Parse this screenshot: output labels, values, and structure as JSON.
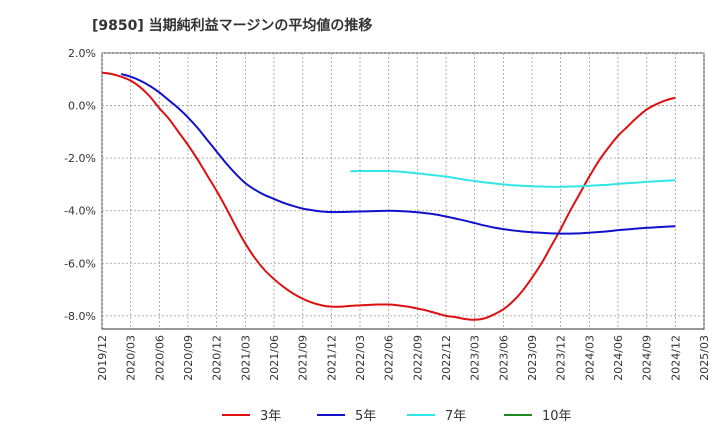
{
  "chart_data": {
    "type": "line",
    "title": "[9850]  当期純利益マージンの平均値の推移",
    "xlabel": "",
    "ylabel": "",
    "ylim": [
      -8.5,
      2.0
    ],
    "y_ticks": [
      2.0,
      0.0,
      -2.0,
      -4.0,
      -6.0,
      -8.0
    ],
    "y_tick_labels": [
      "2.0%",
      "0.0%",
      "-2.0%",
      "-4.0%",
      "-6.0%",
      "-8.0%"
    ],
    "x_ticks": [
      "2019/12",
      "2020/03",
      "2020/06",
      "2020/09",
      "2020/12",
      "2021/03",
      "2021/06",
      "2021/09",
      "2021/12",
      "2022/03",
      "2022/06",
      "2022/09",
      "2022/12",
      "2023/03",
      "2023/06",
      "2023/09",
      "2023/12",
      "2024/03",
      "2024/06",
      "2024/09",
      "2024/12",
      "2025/03"
    ],
    "grid": true,
    "legend_position": "bottom",
    "series": [
      {
        "name": "3年",
        "color": "#dd1111",
        "points": [
          [
            "2019/12",
            1.25
          ],
          [
            "2020/01",
            1.2
          ],
          [
            "2020/02",
            1.1
          ],
          [
            "2020/03",
            0.95
          ],
          [
            "2020/04",
            0.7
          ],
          [
            "2020/05",
            0.35
          ],
          [
            "2020/06",
            -0.1
          ],
          [
            "2020/07",
            -0.5
          ],
          [
            "2020/08",
            -1.0
          ],
          [
            "2020/09",
            -1.5
          ],
          [
            "2020/10",
            -2.05
          ],
          [
            "2020/11",
            -2.65
          ],
          [
            "2020/12",
            -3.25
          ],
          [
            "2021/01",
            -3.9
          ],
          [
            "2021/02",
            -4.6
          ],
          [
            "2021/03",
            -5.25
          ],
          [
            "2021/04",
            -5.8
          ],
          [
            "2021/05",
            -6.25
          ],
          [
            "2021/06",
            -6.6
          ],
          [
            "2021/07",
            -6.9
          ],
          [
            "2021/08",
            -7.15
          ],
          [
            "2021/09",
            -7.35
          ],
          [
            "2021/10",
            -7.5
          ],
          [
            "2021/11",
            -7.6
          ],
          [
            "2021/12",
            -7.65
          ],
          [
            "2022/01",
            -7.65
          ],
          [
            "2022/02",
            -7.62
          ],
          [
            "2022/03",
            -7.6
          ],
          [
            "2022/04",
            -7.58
          ],
          [
            "2022/05",
            -7.57
          ],
          [
            "2022/06",
            -7.57
          ],
          [
            "2022/07",
            -7.6
          ],
          [
            "2022/08",
            -7.65
          ],
          [
            "2022/09",
            -7.72
          ],
          [
            "2022/10",
            -7.8
          ],
          [
            "2022/11",
            -7.9
          ],
          [
            "2022/12",
            -8.0
          ],
          [
            "2023/01",
            -8.05
          ],
          [
            "2023/02",
            -8.12
          ],
          [
            "2023/03",
            -8.15
          ],
          [
            "2023/04",
            -8.1
          ],
          [
            "2023/05",
            -7.95
          ],
          [
            "2023/06",
            -7.75
          ],
          [
            "2023/07",
            -7.45
          ],
          [
            "2023/08",
            -7.05
          ],
          [
            "2023/09",
            -6.55
          ],
          [
            "2023/10",
            -6.0
          ],
          [
            "2023/11",
            -5.35
          ],
          [
            "2023/12",
            -4.7
          ],
          [
            "2024/01",
            -4.0
          ],
          [
            "2024/02",
            -3.35
          ],
          [
            "2024/03",
            -2.7
          ],
          [
            "2024/04",
            -2.1
          ],
          [
            "2024/05",
            -1.6
          ],
          [
            "2024/06",
            -1.15
          ],
          [
            "2024/07",
            -0.8
          ],
          [
            "2024/08",
            -0.45
          ],
          [
            "2024/09",
            -0.15
          ],
          [
            "2024/10",
            0.05
          ],
          [
            "2024/11",
            0.2
          ],
          [
            "2024/12",
            0.3
          ]
        ]
      },
      {
        "name": "5年",
        "color": "#1111cc",
        "points": [
          [
            "2020/02",
            1.2
          ],
          [
            "2020/03",
            1.1
          ],
          [
            "2020/04",
            0.95
          ],
          [
            "2020/05",
            0.75
          ],
          [
            "2020/06",
            0.5
          ],
          [
            "2020/07",
            0.2
          ],
          [
            "2020/08",
            -0.1
          ],
          [
            "2020/09",
            -0.45
          ],
          [
            "2020/10",
            -0.85
          ],
          [
            "2020/11",
            -1.3
          ],
          [
            "2020/12",
            -1.75
          ],
          [
            "2021/01",
            -2.2
          ],
          [
            "2021/02",
            -2.6
          ],
          [
            "2021/03",
            -2.95
          ],
          [
            "2021/04",
            -3.2
          ],
          [
            "2021/05",
            -3.4
          ],
          [
            "2021/06",
            -3.55
          ],
          [
            "2021/07",
            -3.7
          ],
          [
            "2021/08",
            -3.82
          ],
          [
            "2021/09",
            -3.92
          ],
          [
            "2021/10",
            -3.98
          ],
          [
            "2021/11",
            -4.03
          ],
          [
            "2021/12",
            -4.05
          ],
          [
            "2022/01",
            -4.05
          ],
          [
            "2022/02",
            -4.04
          ],
          [
            "2022/03",
            -4.03
          ],
          [
            "2022/04",
            -4.02
          ],
          [
            "2022/05",
            -4.01
          ],
          [
            "2022/06",
            -4.0
          ],
          [
            "2022/07",
            -4.01
          ],
          [
            "2022/08",
            -4.03
          ],
          [
            "2022/09",
            -4.06
          ],
          [
            "2022/10",
            -4.1
          ],
          [
            "2022/11",
            -4.15
          ],
          [
            "2022/12",
            -4.22
          ],
          [
            "2023/01",
            -4.3
          ],
          [
            "2023/02",
            -4.38
          ],
          [
            "2023/03",
            -4.47
          ],
          [
            "2023/04",
            -4.56
          ],
          [
            "2023/05",
            -4.64
          ],
          [
            "2023/06",
            -4.7
          ],
          [
            "2023/07",
            -4.75
          ],
          [
            "2023/08",
            -4.79
          ],
          [
            "2023/09",
            -4.82
          ],
          [
            "2023/10",
            -4.84
          ],
          [
            "2023/11",
            -4.86
          ],
          [
            "2023/12",
            -4.87
          ],
          [
            "2024/01",
            -4.87
          ],
          [
            "2024/02",
            -4.86
          ],
          [
            "2024/03",
            -4.84
          ],
          [
            "2024/04",
            -4.81
          ],
          [
            "2024/05",
            -4.78
          ],
          [
            "2024/06",
            -4.74
          ],
          [
            "2024/07",
            -4.71
          ],
          [
            "2024/08",
            -4.68
          ],
          [
            "2024/09",
            -4.65
          ],
          [
            "2024/10",
            -4.63
          ],
          [
            "2024/11",
            -4.61
          ],
          [
            "2024/12",
            -4.59
          ]
        ]
      },
      {
        "name": "7年",
        "color": "#33e6e6",
        "points": [
          [
            "2022/02",
            -2.5
          ],
          [
            "2022/03",
            -2.49
          ],
          [
            "2022/04",
            -2.49
          ],
          [
            "2022/05",
            -2.49
          ],
          [
            "2022/06",
            -2.49
          ],
          [
            "2022/07",
            -2.51
          ],
          [
            "2022/08",
            -2.54
          ],
          [
            "2022/09",
            -2.58
          ],
          [
            "2022/10",
            -2.62
          ],
          [
            "2022/11",
            -2.66
          ],
          [
            "2022/12",
            -2.7
          ],
          [
            "2023/01",
            -2.76
          ],
          [
            "2023/02",
            -2.82
          ],
          [
            "2023/03",
            -2.87
          ],
          [
            "2023/04",
            -2.92
          ],
          [
            "2023/05",
            -2.96
          ],
          [
            "2023/06",
            -3.0
          ],
          [
            "2023/07",
            -3.03
          ],
          [
            "2023/08",
            -3.05
          ],
          [
            "2023/09",
            -3.07
          ],
          [
            "2023/10",
            -3.08
          ],
          [
            "2023/11",
            -3.09
          ],
          [
            "2023/12",
            -3.09
          ],
          [
            "2024/01",
            -3.08
          ],
          [
            "2024/02",
            -3.07
          ],
          [
            "2024/03",
            -3.05
          ],
          [
            "2024/04",
            -3.03
          ],
          [
            "2024/05",
            -3.01
          ],
          [
            "2024/06",
            -2.98
          ],
          [
            "2024/07",
            -2.95
          ],
          [
            "2024/08",
            -2.93
          ],
          [
            "2024/09",
            -2.9
          ],
          [
            "2024/10",
            -2.88
          ],
          [
            "2024/11",
            -2.86
          ],
          [
            "2024/12",
            -2.84
          ]
        ]
      },
      {
        "name": "10年",
        "color": "#228822",
        "points": []
      }
    ]
  }
}
